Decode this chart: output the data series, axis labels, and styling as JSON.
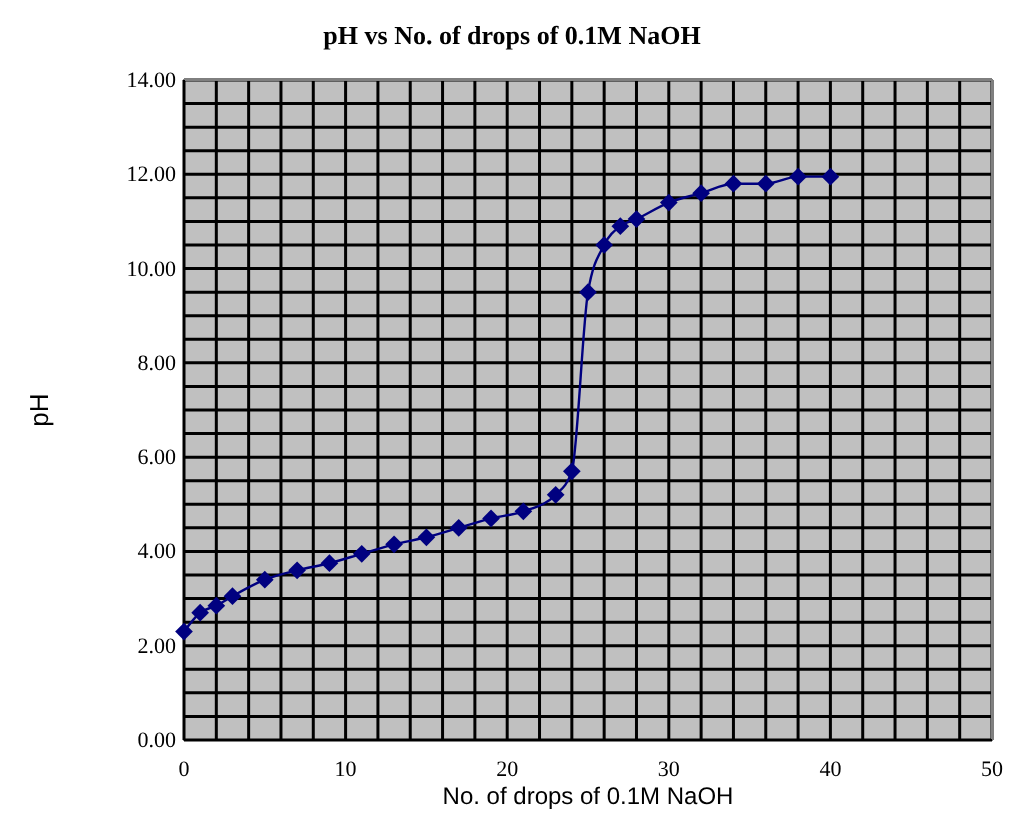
{
  "chart_data": {
    "type": "line",
    "title": "pH vs No. of drops of 0.1M NaOH",
    "xlabel": "No. of drops of 0.1M NaOH",
    "ylabel": "pH",
    "x": [
      0,
      1,
      2,
      3,
      5,
      7,
      9,
      11,
      13,
      15,
      17,
      19,
      21,
      23,
      24,
      25,
      26,
      27,
      28,
      30,
      32,
      34,
      36,
      38,
      40
    ],
    "series": [
      {
        "color": "#000080",
        "values": [
          2.3,
          2.7,
          2.85,
          3.05,
          3.4,
          3.6,
          3.75,
          3.95,
          4.15,
          4.3,
          4.5,
          4.7,
          4.85,
          5.2,
          5.7,
          9.5,
          10.5,
          10.9,
          11.05,
          11.4,
          11.6,
          11.8,
          11.8,
          11.95,
          11.95
        ]
      }
    ],
    "xlim": [
      0,
      50
    ],
    "xticks": [
      0,
      {
        "value": 2,
        "label": null
      },
      {
        "value": 4,
        "label": null
      },
      {
        "value": 6,
        "label": null
      },
      {
        "value": 8,
        "label": null
      },
      10,
      {
        "value": 12,
        "label": null
      },
      {
        "value": 14,
        "label": null
      },
      {
        "value": 16,
        "label": null
      },
      {
        "value": 18,
        "label": null
      },
      20,
      {
        "value": 22,
        "label": null
      },
      {
        "value": 24,
        "label": null
      },
      {
        "value": 26,
        "label": null
      },
      {
        "value": 28,
        "label": null
      },
      30,
      {
        "value": 32,
        "label": null
      },
      {
        "value": 34,
        "label": null
      },
      {
        "value": 36,
        "label": null
      },
      {
        "value": 38,
        "label": null
      },
      40,
      {
        "value": 42,
        "label": null
      },
      {
        "value": 44,
        "label": null
      },
      {
        "value": 46,
        "label": null
      },
      {
        "value": 48,
        "label": null
      },
      50
    ],
    "ylim": [
      0,
      14
    ],
    "yticks": [
      {
        "value": 0,
        "label": "0.00"
      },
      {
        "value": 0.5,
        "label": null
      },
      {
        "value": 1,
        "label": null
      },
      {
        "value": 1.5,
        "label": null
      },
      {
        "value": 2,
        "label": "2.00"
      },
      {
        "value": 2.5,
        "label": null
      },
      {
        "value": 3,
        "label": null
      },
      {
        "value": 3.5,
        "label": null
      },
      {
        "value": 4,
        "label": "4.00"
      },
      {
        "value": 4.5,
        "label": null
      },
      {
        "value": 5,
        "label": null
      },
      {
        "value": 5.5,
        "label": null
      },
      {
        "value": 6,
        "label": "6.00"
      },
      {
        "value": 6.5,
        "label": null
      },
      {
        "value": 7,
        "label": null
      },
      {
        "value": 7.5,
        "label": null
      },
      {
        "value": 8,
        "label": "8.00"
      },
      {
        "value": 8.5,
        "label": null
      },
      {
        "value": 9,
        "label": null
      },
      {
        "value": 9.5,
        "label": null
      },
      {
        "value": 10,
        "label": "10.00"
      },
      {
        "value": 10.5,
        "label": null
      },
      {
        "value": 11,
        "label": null
      },
      {
        "value": 11.5,
        "label": null
      },
      {
        "value": 12,
        "label": "12.00"
      },
      {
        "value": 12.5,
        "label": null
      },
      {
        "value": 13,
        "label": null
      },
      {
        "value": 13.5,
        "label": null
      },
      {
        "value": 14,
        "label": "14.00"
      }
    ],
    "grid": true,
    "marker": "diamond",
    "line_style": "solid"
  }
}
